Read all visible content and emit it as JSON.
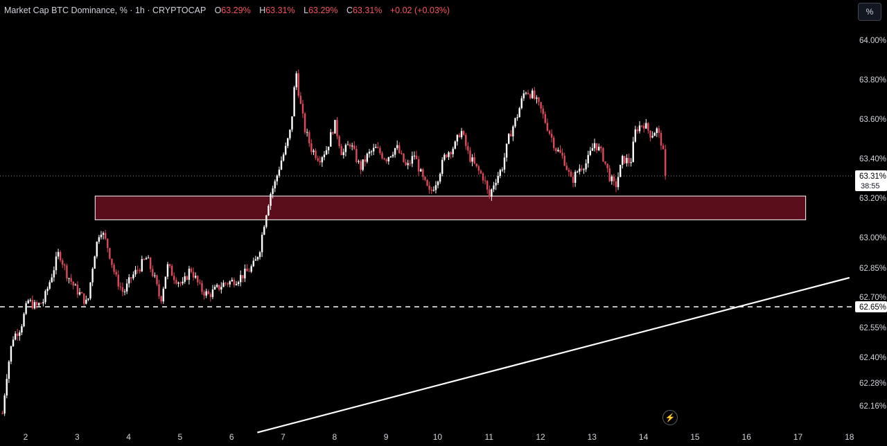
{
  "legend": {
    "title": "Market Cap BTC Dominance, % · 1h · CRYPTOCAP",
    "o_label": "O",
    "o_value": "63.29%",
    "h_label": "H",
    "h_value": "63.31%",
    "l_label": "L",
    "l_value": "63.29%",
    "c_label": "C",
    "c_value": "63.31%",
    "change": "+0.02 (+0.03%)"
  },
  "toolbar": {
    "percent_label": "%",
    "bolt_icon": "lightning-icon"
  },
  "colors": {
    "up": "#ffffff",
    "down": "#e0485a",
    "zone_fill": "#5a0e1c",
    "bg": "#000000",
    "axis_text": "#d1d4dc"
  },
  "price_axis": {
    "ticks": [
      {
        "value": 64.0,
        "label": "64.00%"
      },
      {
        "value": 63.8,
        "label": "63.80%"
      },
      {
        "value": 63.6,
        "label": "63.60%"
      },
      {
        "value": 63.4,
        "label": "63.40%"
      },
      {
        "value": 63.2,
        "label": "63.20%"
      },
      {
        "value": 63.0,
        "label": "63.00%"
      },
      {
        "value": 62.85,
        "label": "62.85%"
      },
      {
        "value": 62.7,
        "label": "62.70%"
      },
      {
        "value": 62.55,
        "label": "62.55%"
      },
      {
        "value": 62.4,
        "label": "62.40%"
      },
      {
        "value": 62.28,
        "label": "62.28%"
      },
      {
        "value": 62.16,
        "label": "62.16%"
      }
    ],
    "last_price_label": "63.31%",
    "countdown": "38:55",
    "level_label": "62.65%"
  },
  "chart_data": {
    "type": "candlestick",
    "symbol": "Market Cap BTC Dominance, %",
    "interval": "1h",
    "x_tick_labels": [
      "2",
      "3",
      "4",
      "5",
      "6",
      "7",
      "8",
      "9",
      "10",
      "11",
      "12",
      "13",
      "14",
      "15",
      "16",
      "17",
      "18"
    ],
    "x_range_days": [
      1.55,
      18.0
    ],
    "price_range": [
      62.1,
      64.1
    ],
    "last_price": 63.31,
    "support_level": 62.65,
    "resistance_zone": {
      "from_day": 3.35,
      "to_day": 17.15,
      "low": 63.09,
      "high": 63.21
    },
    "trendline": {
      "start": {
        "day": 6.5,
        "price": 62.02
      },
      "end": {
        "day": 18.0,
        "price": 62.8
      }
    },
    "price_path": [
      [
        1.55,
        62.12
      ],
      [
        1.62,
        62.3
      ],
      [
        1.75,
        62.5
      ],
      [
        1.9,
        62.55
      ],
      [
        2.05,
        62.68
      ],
      [
        2.2,
        62.65
      ],
      [
        2.35,
        62.68
      ],
      [
        2.55,
        62.85
      ],
      [
        2.65,
        62.93
      ],
      [
        2.8,
        62.82
      ],
      [
        2.95,
        62.75
      ],
      [
        3.1,
        62.7
      ],
      [
        3.2,
        62.66
      ],
      [
        3.32,
        62.9
      ],
      [
        3.45,
        63.05
      ],
      [
        3.6,
        62.95
      ],
      [
        3.75,
        62.8
      ],
      [
        3.9,
        62.72
      ],
      [
        4.05,
        62.8
      ],
      [
        4.2,
        62.85
      ],
      [
        4.35,
        62.9
      ],
      [
        4.5,
        62.8
      ],
      [
        4.62,
        62.68
      ],
      [
        4.75,
        62.86
      ],
      [
        4.9,
        62.8
      ],
      [
        5.05,
        62.76
      ],
      [
        5.2,
        62.85
      ],
      [
        5.4,
        62.74
      ],
      [
        5.55,
        62.71
      ],
      [
        5.7,
        62.74
      ],
      [
        5.85,
        62.77
      ],
      [
        6.0,
        62.78
      ],
      [
        6.15,
        62.8
      ],
      [
        6.3,
        62.83
      ],
      [
        6.45,
        62.87
      ],
      [
        6.55,
        62.95
      ],
      [
        6.65,
        63.1
      ],
      [
        6.75,
        63.22
      ],
      [
        6.85,
        63.28
      ],
      [
        6.95,
        63.38
      ],
      [
        7.05,
        63.45
      ],
      [
        7.15,
        63.55
      ],
      [
        7.25,
        63.85
      ],
      [
        7.32,
        63.7
      ],
      [
        7.42,
        63.55
      ],
      [
        7.55,
        63.45
      ],
      [
        7.7,
        63.4
      ],
      [
        7.85,
        63.45
      ],
      [
        8.0,
        63.58
      ],
      [
        8.15,
        63.42
      ],
      [
        8.3,
        63.48
      ],
      [
        8.5,
        63.35
      ],
      [
        8.65,
        63.42
      ],
      [
        8.8,
        63.45
      ],
      [
        9.0,
        63.4
      ],
      [
        9.2,
        63.46
      ],
      [
        9.4,
        63.35
      ],
      [
        9.55,
        63.42
      ],
      [
        9.7,
        63.3
      ],
      [
        9.85,
        63.22
      ],
      [
        10.0,
        63.3
      ],
      [
        10.15,
        63.42
      ],
      [
        10.35,
        63.47
      ],
      [
        10.45,
        63.55
      ],
      [
        10.6,
        63.42
      ],
      [
        10.75,
        63.35
      ],
      [
        10.9,
        63.3
      ],
      [
        11.0,
        63.2
      ],
      [
        11.1,
        63.28
      ],
      [
        11.25,
        63.35
      ],
      [
        11.4,
        63.52
      ],
      [
        11.55,
        63.62
      ],
      [
        11.7,
        63.75
      ],
      [
        11.85,
        63.72
      ],
      [
        12.0,
        63.65
      ],
      [
        12.15,
        63.55
      ],
      [
        12.3,
        63.45
      ],
      [
        12.45,
        63.4
      ],
      [
        12.6,
        63.28
      ],
      [
        12.75,
        63.35
      ],
      [
        12.9,
        63.38
      ],
      [
        13.05,
        63.48
      ],
      [
        13.2,
        63.42
      ],
      [
        13.35,
        63.3
      ],
      [
        13.45,
        63.25
      ],
      [
        13.6,
        63.4
      ],
      [
        13.75,
        63.38
      ],
      [
        13.85,
        63.55
      ],
      [
        14.0,
        63.58
      ],
      [
        14.15,
        63.52
      ],
      [
        14.25,
        63.55
      ],
      [
        14.35,
        63.48
      ],
      [
        14.45,
        63.31
      ]
    ]
  }
}
